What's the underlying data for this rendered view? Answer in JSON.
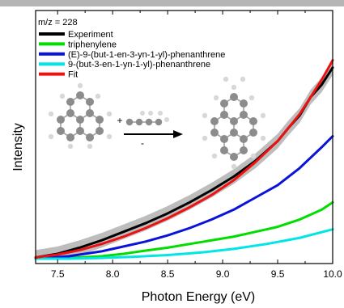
{
  "chart_data": {
    "type": "line",
    "xlabel": "Photon Energy (eV)",
    "ylabel": "Intensity",
    "xlim": [
      7.3,
      10.0
    ],
    "ylim": [
      0.0,
      1.0
    ],
    "xticks": [
      7.5,
      8.0,
      8.5,
      9.0,
      9.5,
      10.0
    ],
    "xtick_labels": [
      "7.5",
      "8.0",
      "8.5",
      "9.0",
      "9.5",
      "10.0"
    ],
    "annotation": "m/z = 228",
    "legend_position": "top-left",
    "grid": false,
    "series": [
      {
        "name": "Experiment",
        "color": "#000000",
        "x": [
          7.3,
          7.5,
          7.7,
          7.9,
          8.1,
          8.3,
          8.5,
          8.7,
          8.9,
          9.1,
          9.3,
          9.5,
          9.6,
          9.7,
          9.8,
          9.9,
          10.0
        ],
        "y": [
          0.005,
          0.02,
          0.045,
          0.075,
          0.11,
          0.145,
          0.185,
          0.23,
          0.28,
          0.335,
          0.4,
          0.48,
          0.535,
          0.585,
          0.66,
          0.71,
          0.78
        ],
        "band": 0.03
      },
      {
        "name": "triphenylene",
        "color": "#00dd00",
        "x": [
          7.3,
          7.6,
          7.9,
          8.1,
          8.3,
          8.5,
          8.7,
          8.9,
          9.1,
          9.3,
          9.5,
          9.7,
          9.9,
          10.0
        ],
        "y": [
          0.0,
          0.003,
          0.01,
          0.02,
          0.033,
          0.045,
          0.06,
          0.075,
          0.09,
          0.11,
          0.13,
          0.16,
          0.2,
          0.23
        ]
      },
      {
        "name": "(E)-9-(but-1-en-3-yn-1-yl)-phenanthrene",
        "color": "#0a14d8",
        "x": [
          7.3,
          7.6,
          7.9,
          8.1,
          8.3,
          8.5,
          8.7,
          8.9,
          9.1,
          9.3,
          9.5,
          9.7,
          9.9,
          10.0
        ],
        "y": [
          0.0,
          0.01,
          0.03,
          0.05,
          0.07,
          0.095,
          0.125,
          0.16,
          0.2,
          0.25,
          0.3,
          0.37,
          0.455,
          0.5
        ]
      },
      {
        "name": "9-(but-3-en-1-yn-1-yl)-phenanthrene",
        "color": "#00e6e6",
        "x": [
          7.3,
          7.6,
          7.9,
          8.2,
          8.5,
          8.8,
          9.1,
          9.4,
          9.7,
          10.0
        ],
        "y": [
          0.0,
          0.0,
          0.003,
          0.008,
          0.015,
          0.025,
          0.04,
          0.06,
          0.085,
          0.12
        ]
      },
      {
        "name": "Fit",
        "color": "#ee1111",
        "x": [
          7.3,
          7.5,
          7.7,
          7.9,
          8.1,
          8.3,
          8.5,
          8.7,
          8.9,
          9.1,
          9.3,
          9.5,
          9.7,
          9.9,
          10.0
        ],
        "y": [
          0.005,
          0.017,
          0.035,
          0.06,
          0.09,
          0.125,
          0.165,
          0.21,
          0.26,
          0.32,
          0.395,
          0.48,
          0.59,
          0.73,
          0.81
        ]
      }
    ],
    "inset": {
      "reactant_sign": "+",
      "arrow_sign": "-",
      "colors": {
        "carbon": "#8c8c8c",
        "hydrogen": "#d8d8d8"
      }
    }
  }
}
